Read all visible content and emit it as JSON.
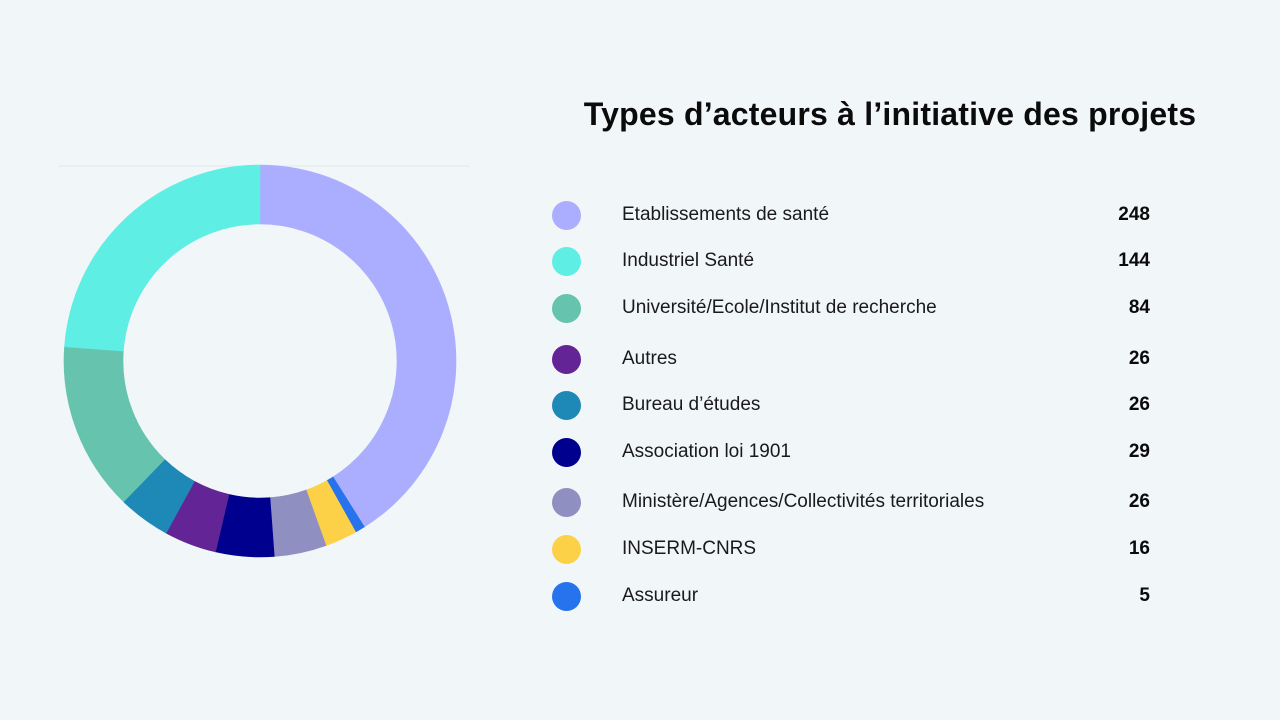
{
  "chart_data": {
    "type": "pie",
    "variant": "donut",
    "title": "Types d’acteurs à l’initiative des projets",
    "legend_position": "right",
    "slices": [
      {
        "label": "Etablissements de santé",
        "value": 248,
        "color": "#abaefe"
      },
      {
        "label": "Industriel Santé",
        "value": 144,
        "color": "#5eeee4"
      },
      {
        "label": "Université/Ecole/Institut de recherche",
        "value": 84,
        "color": "#66c3ae"
      },
      {
        "label": "Autres",
        "value": 26,
        "color": "#632596"
      },
      {
        "label": "Bureau d’études",
        "value": 26,
        "color": "#1e89b6"
      },
      {
        "label": "Association loi 1901",
        "value": 29,
        "color": "#00008e"
      },
      {
        "label": "Ministère/Agences/Collectivités territoriales",
        "value": 26,
        "color": "#8f8fc2"
      },
      {
        "label": "INSERM-CNRS",
        "value": 16,
        "color": "#fdd147"
      },
      {
        "label": "Assureur",
        "value": 5,
        "color": "#2673ed"
      }
    ],
    "ring_order_clockwise": [
      "Etablissements de santé",
      "Assureur",
      "INSERM-CNRS",
      "Ministère/Agences/Collectivités territoriales",
      "Association loi 1901",
      "Autres",
      "Bureau d’études",
      "Université/Ecole/Institut de recherche",
      "Industriel Santé"
    ]
  }
}
